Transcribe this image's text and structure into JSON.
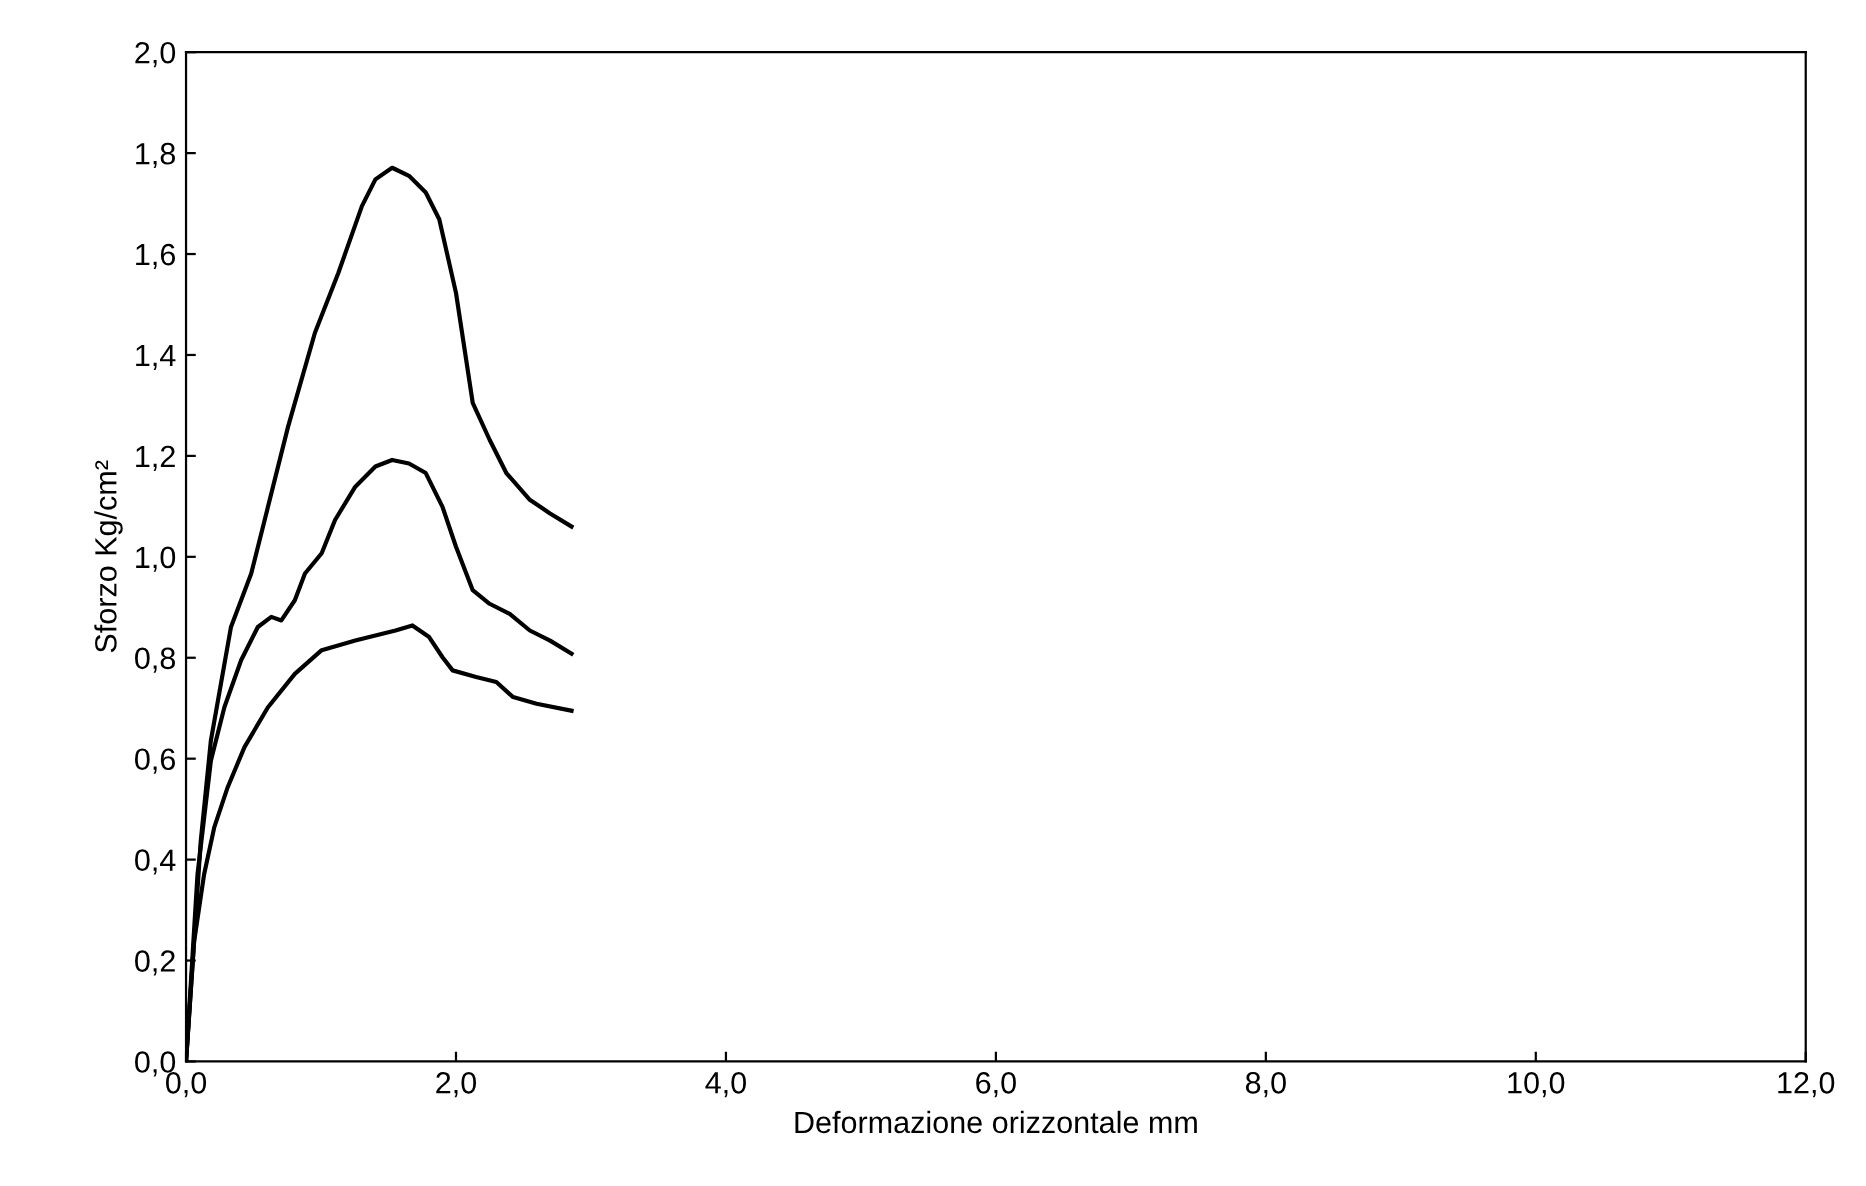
{
  "chart_data": {
    "type": "line",
    "xlabel": "Deformazione orizzontale mm",
    "ylabel": "Sforzo Kg/cm²",
    "xlim": [
      0,
      12
    ],
    "ylim": [
      0,
      2
    ],
    "xticks": [
      {
        "value": 0,
        "label": "0,0"
      },
      {
        "value": 2,
        "label": "2,0"
      },
      {
        "value": 4,
        "label": "4,0"
      },
      {
        "value": 6,
        "label": "6,0"
      },
      {
        "value": 8,
        "label": "8,0"
      },
      {
        "value": 10,
        "label": "10,0"
      },
      {
        "value": 12,
        "label": "12,0"
      }
    ],
    "yticks": [
      {
        "value": 0,
        "label": "0,0"
      },
      {
        "value": 0.2,
        "label": "0,2"
      },
      {
        "value": 0.4,
        "label": "0,4"
      },
      {
        "value": 0.6,
        "label": "0,6"
      },
      {
        "value": 0.8,
        "label": "0,8"
      },
      {
        "value": 1.0,
        "label": "1,0"
      },
      {
        "value": 1.2,
        "label": "1,2"
      },
      {
        "value": 1.4,
        "label": "1,4"
      },
      {
        "value": 1.6,
        "label": "1,6"
      },
      {
        "value": 1.8,
        "label": "1,8"
      },
      {
        "value": 2.0,
        "label": "2,0"
      }
    ],
    "grid": false,
    "marker": "none",
    "line_style": "solid",
    "series": [
      {
        "color": "#000000",
        "x": [
          0,
          0.109,
          0.184,
          0.333,
          0.483,
          0.607,
          0.756,
          0.955,
          1.129,
          1.303,
          1.403,
          1.527,
          1.652,
          1.776,
          1.876,
          2.0,
          2.124,
          2.249,
          2.373,
          2.547,
          2.697,
          2.856
        ],
        "values": [
          0,
          0.437,
          0.636,
          0.861,
          0.967,
          1.099,
          1.258,
          1.444,
          1.563,
          1.695,
          1.748,
          1.771,
          1.755,
          1.722,
          1.669,
          1.523,
          1.305,
          1.232,
          1.166,
          1.113,
          1.086,
          1.06
        ]
      },
      {
        "color": "#000000",
        "x": [
          0,
          0.085,
          0.184,
          0.284,
          0.408,
          0.532,
          0.632,
          0.706,
          0.806,
          0.881,
          1.005,
          1.104,
          1.254,
          1.403,
          1.527,
          1.652,
          1.776,
          1.9,
          2.0,
          2.124,
          2.249,
          2.398,
          2.547,
          2.697,
          2.856
        ],
        "values": [
          0,
          0.371,
          0.596,
          0.702,
          0.795,
          0.861,
          0.881,
          0.874,
          0.914,
          0.967,
          1.007,
          1.073,
          1.139,
          1.179,
          1.192,
          1.185,
          1.166,
          1.099,
          1.02,
          0.934,
          0.907,
          0.887,
          0.854,
          0.834,
          0.808
        ]
      },
      {
        "color": "#000000",
        "x": [
          0,
          0.06,
          0.134,
          0.209,
          0.308,
          0.433,
          0.607,
          0.806,
          1.005,
          1.254,
          1.552,
          1.677,
          1.801,
          1.9,
          1.975,
          2.149,
          2.299,
          2.423,
          2.597,
          2.856
        ],
        "values": [
          0,
          0.238,
          0.371,
          0.464,
          0.543,
          0.623,
          0.702,
          0.768,
          0.815,
          0.834,
          0.854,
          0.864,
          0.841,
          0.801,
          0.775,
          0.762,
          0.752,
          0.722,
          0.709,
          0.695
        ]
      }
    ]
  }
}
